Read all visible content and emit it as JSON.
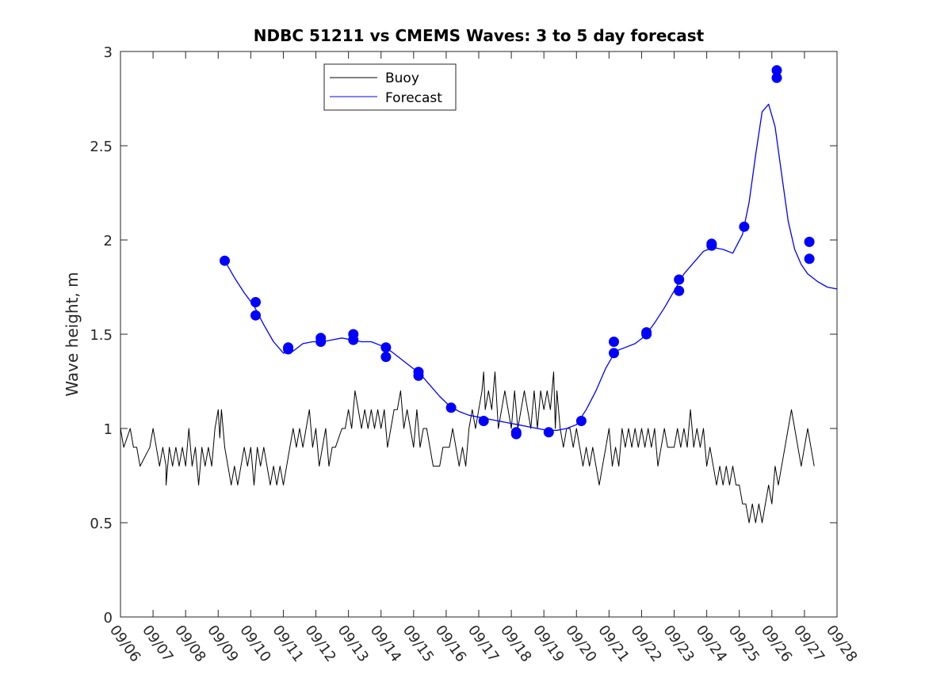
{
  "chart_data": {
    "type": "line",
    "title": "NDBC 51211 vs CMEMS Waves: 3 to 5 day forecast",
    "xlabel": "",
    "ylabel": "Wave height, m",
    "xlim": [
      0,
      22
    ],
    "ylim": [
      0,
      3
    ],
    "x_tick_labels": [
      "09/06",
      "09/07",
      "09/08",
      "09/09",
      "09/10",
      "09/11",
      "09/12",
      "09/13",
      "09/14",
      "09/15",
      "09/16",
      "09/17",
      "09/18",
      "09/19",
      "09/20",
      "09/21",
      "09/22",
      "09/23",
      "09/24",
      "09/25",
      "09/26",
      "09/27",
      "09/28"
    ],
    "y_ticks": [
      0,
      0.5,
      1,
      1.5,
      2,
      2.5,
      3
    ],
    "y_tick_labels": [
      "0",
      "0.5",
      "1",
      "1.5",
      "2",
      "2.5",
      "3"
    ],
    "x_unit": "days since 09/06",
    "legend": {
      "location": "top-left",
      "entries": [
        {
          "label": "Buoy",
          "color": "#000000"
        },
        {
          "label": "Forecast",
          "color": "#0000ff"
        }
      ]
    },
    "series": [
      {
        "name": "Buoy",
        "color": "#000000",
        "points": [
          [
            0.0,
            1.0
          ],
          [
            0.1,
            0.9
          ],
          [
            0.3,
            1.0
          ],
          [
            0.4,
            0.9
          ],
          [
            0.5,
            0.9
          ],
          [
            0.6,
            0.8
          ],
          [
            0.9,
            0.9
          ],
          [
            1.0,
            1.0
          ],
          [
            1.1,
            0.9
          ],
          [
            1.2,
            0.8
          ],
          [
            1.3,
            0.9
          ],
          [
            1.4,
            0.8
          ],
          [
            1.4,
            0.7
          ],
          [
            1.5,
            0.9
          ],
          [
            1.6,
            0.8
          ],
          [
            1.7,
            0.9
          ],
          [
            1.8,
            0.8
          ],
          [
            1.9,
            0.9
          ],
          [
            2.0,
            0.8
          ],
          [
            2.1,
            1.0
          ],
          [
            2.2,
            0.8
          ],
          [
            2.3,
            0.9
          ],
          [
            2.4,
            0.7
          ],
          [
            2.5,
            0.9
          ],
          [
            2.6,
            0.8
          ],
          [
            2.7,
            0.9
          ],
          [
            2.8,
            0.8
          ],
          [
            2.9,
            1.0
          ],
          [
            3.0,
            1.1
          ],
          [
            3.05,
            0.95
          ],
          [
            3.1,
            1.1
          ],
          [
            3.2,
            0.9
          ],
          [
            3.3,
            0.8
          ],
          [
            3.4,
            0.7
          ],
          [
            3.5,
            0.8
          ],
          [
            3.6,
            0.7
          ],
          [
            3.7,
            0.8
          ],
          [
            3.8,
            0.9
          ],
          [
            3.9,
            0.8
          ],
          [
            4.0,
            0.9
          ],
          [
            4.1,
            0.7
          ],
          [
            4.2,
            0.9
          ],
          [
            4.3,
            0.8
          ],
          [
            4.4,
            0.9
          ],
          [
            4.5,
            0.8
          ],
          [
            4.6,
            0.7
          ],
          [
            4.7,
            0.8
          ],
          [
            4.8,
            0.7
          ],
          [
            4.9,
            0.8
          ],
          [
            5.0,
            0.7
          ],
          [
            5.1,
            0.8
          ],
          [
            5.2,
            0.9
          ],
          [
            5.3,
            1.0
          ],
          [
            5.4,
            0.9
          ],
          [
            5.5,
            1.0
          ],
          [
            5.6,
            0.9
          ],
          [
            5.7,
            1.0
          ],
          [
            5.8,
            1.1
          ],
          [
            5.9,
            0.9
          ],
          [
            6.0,
            1.0
          ],
          [
            6.1,
            0.8
          ],
          [
            6.2,
            0.9
          ],
          [
            6.3,
            1.0
          ],
          [
            6.4,
            0.8
          ],
          [
            6.5,
            0.9
          ],
          [
            6.6,
            0.9
          ],
          [
            6.8,
            1.0
          ],
          [
            6.9,
            1.0
          ],
          [
            7.0,
            1.1
          ],
          [
            7.1,
            1.0
          ],
          [
            7.2,
            1.2
          ],
          [
            7.3,
            1.1
          ],
          [
            7.4,
            1.0
          ],
          [
            7.5,
            1.1
          ],
          [
            7.6,
            1.0
          ],
          [
            7.7,
            1.1
          ],
          [
            7.8,
            1.0
          ],
          [
            7.9,
            1.1
          ],
          [
            8.0,
            1.0
          ],
          [
            8.1,
            1.1
          ],
          [
            8.2,
            0.9
          ],
          [
            8.3,
            1.0
          ],
          [
            8.4,
            1.1
          ],
          [
            8.5,
            1.1
          ],
          [
            8.6,
            1.2
          ],
          [
            8.7,
            1.0
          ],
          [
            8.8,
            1.1
          ],
          [
            8.9,
            1.0
          ],
          [
            9.0,
            0.9
          ],
          [
            9.1,
            1.1
          ],
          [
            9.2,
            0.9
          ],
          [
            9.3,
            1.0
          ],
          [
            9.4,
            1.0
          ],
          [
            9.5,
            0.9
          ],
          [
            9.6,
            0.8
          ],
          [
            9.8,
            0.8
          ],
          [
            9.9,
            0.9
          ],
          [
            10.0,
            0.9
          ],
          [
            10.1,
            0.9
          ],
          [
            10.2,
            1.0
          ],
          [
            10.3,
            0.9
          ],
          [
            10.4,
            0.8
          ],
          [
            10.5,
            0.9
          ],
          [
            10.6,
            0.8
          ],
          [
            10.7,
            1.0
          ],
          [
            10.8,
            1.1
          ],
          [
            10.9,
            1.0
          ],
          [
            11.0,
            1.1
          ],
          [
            11.1,
            1.2
          ],
          [
            11.15,
            1.3
          ],
          [
            11.2,
            1.1
          ],
          [
            11.3,
            1.2
          ],
          [
            11.4,
            1.1
          ],
          [
            11.5,
            1.3
          ],
          [
            11.6,
            1.0
          ],
          [
            11.7,
            1.1
          ],
          [
            11.8,
            1.2
          ],
          [
            11.9,
            1.1
          ],
          [
            12.0,
            1.0
          ],
          [
            12.1,
            1.2
          ],
          [
            12.2,
            1.0
          ],
          [
            12.3,
            1.1
          ],
          [
            12.4,
            1.2
          ],
          [
            12.5,
            1.1
          ],
          [
            12.6,
            1.0
          ],
          [
            12.7,
            1.2
          ],
          [
            12.8,
            1.0
          ],
          [
            12.9,
            1.2
          ],
          [
            13.0,
            1.1
          ],
          [
            13.1,
            1.2
          ],
          [
            13.2,
            1.1
          ],
          [
            13.3,
            1.3
          ],
          [
            13.35,
            1.0
          ],
          [
            13.4,
            1.2
          ],
          [
            13.5,
            1.0
          ],
          [
            13.6,
            0.9
          ],
          [
            13.7,
            1.0
          ],
          [
            13.8,
            1.0
          ],
          [
            13.9,
            0.9
          ],
          [
            14.0,
            1.0
          ],
          [
            14.1,
            0.9
          ],
          [
            14.2,
            0.8
          ],
          [
            14.3,
            0.9
          ],
          [
            14.4,
            0.8
          ],
          [
            14.5,
            0.9
          ],
          [
            14.6,
            0.8
          ],
          [
            14.7,
            0.7
          ],
          [
            14.8,
            0.8
          ],
          [
            14.9,
            0.9
          ],
          [
            15.0,
            1.0
          ],
          [
            15.1,
            0.8
          ],
          [
            15.2,
            0.9
          ],
          [
            15.3,
            0.8
          ],
          [
            15.4,
            1.0
          ],
          [
            15.5,
            0.9
          ],
          [
            15.6,
            1.0
          ],
          [
            15.7,
            0.9
          ],
          [
            15.8,
            1.0
          ],
          [
            15.9,
            0.9
          ],
          [
            16.0,
            1.0
          ],
          [
            16.1,
            0.9
          ],
          [
            16.2,
            1.0
          ],
          [
            16.3,
            0.9
          ],
          [
            16.4,
            1.0
          ],
          [
            16.5,
            0.8
          ],
          [
            16.6,
            0.9
          ],
          [
            16.7,
            1.0
          ],
          [
            16.8,
            0.9
          ],
          [
            16.9,
            0.9
          ],
          [
            17.0,
            0.9
          ],
          [
            17.1,
            1.0
          ],
          [
            17.2,
            0.9
          ],
          [
            17.3,
            1.0
          ],
          [
            17.4,
            0.9
          ],
          [
            17.5,
            1.1
          ],
          [
            17.6,
            0.9
          ],
          [
            17.7,
            1.0
          ],
          [
            17.8,
            0.9
          ],
          [
            17.9,
            1.0
          ],
          [
            18.0,
            0.8
          ],
          [
            18.1,
            0.9
          ],
          [
            18.2,
            0.8
          ],
          [
            18.3,
            0.7
          ],
          [
            18.4,
            0.8
          ],
          [
            18.5,
            0.7
          ],
          [
            18.6,
            0.8
          ],
          [
            18.7,
            0.7
          ],
          [
            18.8,
            0.8
          ],
          [
            18.9,
            0.7
          ],
          [
            19.0,
            0.7
          ],
          [
            19.1,
            0.6
          ],
          [
            19.2,
            0.6
          ],
          [
            19.3,
            0.5
          ],
          [
            19.4,
            0.6
          ],
          [
            19.5,
            0.5
          ],
          [
            19.6,
            0.6
          ],
          [
            19.7,
            0.5
          ],
          [
            19.8,
            0.6
          ],
          [
            19.9,
            0.7
          ],
          [
            20.0,
            0.6
          ],
          [
            20.1,
            0.8
          ],
          [
            20.2,
            0.7
          ],
          [
            20.3,
            0.8
          ],
          [
            20.4,
            0.9
          ],
          [
            20.5,
            1.0
          ],
          [
            20.6,
            1.1
          ],
          [
            20.7,
            1.0
          ],
          [
            20.8,
            0.9
          ],
          [
            20.9,
            0.8
          ],
          [
            21.0,
            0.9
          ],
          [
            21.1,
            1.0
          ],
          [
            21.2,
            0.9
          ],
          [
            21.3,
            0.8
          ]
        ]
      },
      {
        "name": "Forecast",
        "color": "#0000ff",
        "points": [
          [
            3.2,
            1.89
          ],
          [
            3.5,
            1.8
          ],
          [
            3.8,
            1.72
          ],
          [
            4.1,
            1.65
          ],
          [
            4.4,
            1.55
          ],
          [
            4.7,
            1.46
          ],
          [
            5.0,
            1.4
          ],
          [
            5.3,
            1.41
          ],
          [
            5.6,
            1.45
          ],
          [
            5.9,
            1.46
          ],
          [
            6.2,
            1.46
          ],
          [
            6.5,
            1.47
          ],
          [
            6.8,
            1.48
          ],
          [
            7.1,
            1.47
          ],
          [
            7.4,
            1.46
          ],
          [
            7.7,
            1.46
          ],
          [
            8.0,
            1.44
          ],
          [
            8.3,
            1.41
          ],
          [
            8.6,
            1.37
          ],
          [
            8.9,
            1.33
          ],
          [
            9.2,
            1.29
          ],
          [
            9.5,
            1.23
          ],
          [
            9.8,
            1.17
          ],
          [
            10.1,
            1.12
          ],
          [
            10.4,
            1.09
          ],
          [
            10.7,
            1.07
          ],
          [
            11.0,
            1.06
          ],
          [
            11.3,
            1.05
          ],
          [
            11.6,
            1.04
          ],
          [
            11.9,
            1.03
          ],
          [
            12.2,
            1.02
          ],
          [
            12.5,
            1.01
          ],
          [
            12.8,
            1.0
          ],
          [
            13.1,
            0.99
          ],
          [
            13.4,
            0.99
          ],
          [
            13.7,
            1.0
          ],
          [
            14.0,
            1.02
          ],
          [
            14.3,
            1.1
          ],
          [
            14.6,
            1.2
          ],
          [
            14.9,
            1.32
          ],
          [
            15.2,
            1.41
          ],
          [
            15.5,
            1.43
          ],
          [
            15.8,
            1.45
          ],
          [
            16.1,
            1.49
          ],
          [
            16.4,
            1.56
          ],
          [
            16.7,
            1.64
          ],
          [
            17.0,
            1.73
          ],
          [
            17.3,
            1.82
          ],
          [
            17.6,
            1.88
          ],
          [
            17.9,
            1.94
          ],
          [
            18.2,
            1.96
          ],
          [
            18.5,
            1.95
          ],
          [
            18.8,
            1.93
          ],
          [
            19.1,
            2.03
          ],
          [
            19.3,
            2.2
          ],
          [
            19.5,
            2.45
          ],
          [
            19.7,
            2.68
          ],
          [
            19.9,
            2.72
          ],
          [
            20.1,
            2.6
          ],
          [
            20.3,
            2.35
          ],
          [
            20.5,
            2.1
          ],
          [
            20.7,
            1.95
          ],
          [
            20.9,
            1.87
          ],
          [
            21.1,
            1.82
          ],
          [
            21.4,
            1.78
          ],
          [
            21.7,
            1.75
          ],
          [
            22.0,
            1.74
          ]
        ]
      }
    ],
    "forecast_markers": [
      [
        3.2,
        1.89
      ],
      [
        4.15,
        1.67
      ],
      [
        4.15,
        1.6
      ],
      [
        5.15,
        1.43
      ],
      [
        5.15,
        1.42
      ],
      [
        6.15,
        1.48
      ],
      [
        6.15,
        1.46
      ],
      [
        7.15,
        1.5
      ],
      [
        7.15,
        1.47
      ],
      [
        8.15,
        1.43
      ],
      [
        8.15,
        1.38
      ],
      [
        9.15,
        1.3
      ],
      [
        9.15,
        1.28
      ],
      [
        10.15,
        1.11
      ],
      [
        11.15,
        1.04
      ],
      [
        12.15,
        0.98
      ],
      [
        12.15,
        0.97
      ],
      [
        13.15,
        0.98
      ],
      [
        14.15,
        1.04
      ],
      [
        15.15,
        1.46
      ],
      [
        15.15,
        1.4
      ],
      [
        16.15,
        1.51
      ],
      [
        16.15,
        1.5
      ],
      [
        17.15,
        1.79
      ],
      [
        17.15,
        1.73
      ],
      [
        18.15,
        1.98
      ],
      [
        18.15,
        1.97
      ],
      [
        19.15,
        2.07
      ],
      [
        20.15,
        2.9
      ],
      [
        20.15,
        2.86
      ],
      [
        21.15,
        1.99
      ],
      [
        21.15,
        1.9
      ]
    ]
  }
}
